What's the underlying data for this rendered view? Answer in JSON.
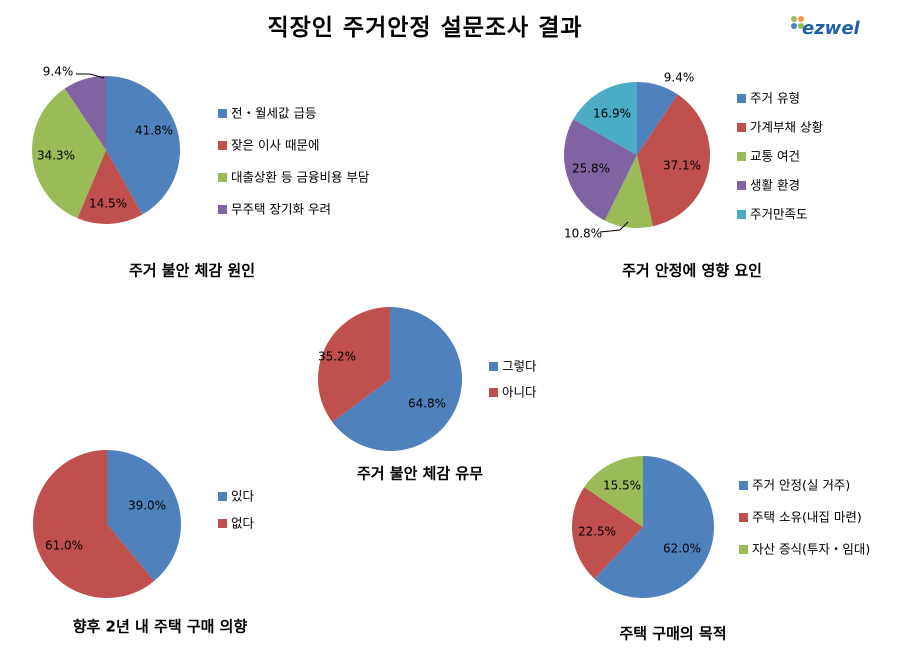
{
  "title": "직장인 주거안정 설문조사 결과",
  "logo": {
    "text": "ezwel"
  },
  "chart_data": [
    {
      "type": "pie",
      "title": "주거 불안 체감 원인",
      "categories": [
        "전・월세값 급등",
        "잦은 이사 때문에",
        "대출상환 등 금융비용 부담",
        "무주택 장기화 우려"
      ],
      "values": [
        41.8,
        14.5,
        34.3,
        9.4
      ],
      "labels": [
        "41.8%",
        "14.5%",
        "34.3%",
        "9.4%"
      ],
      "colors": [
        "#4f81bd",
        "#c0504d",
        "#9bbb59",
        "#8064a2"
      ],
      "legend": "right"
    },
    {
      "type": "pie",
      "title": "주거 안정에 영향 요인",
      "categories": [
        "주거 유형",
        "가계부채 상황",
        "교통 여건",
        "생활 환경",
        "주거만족도"
      ],
      "values": [
        9.4,
        37.1,
        10.8,
        25.8,
        16.9
      ],
      "labels": [
        "9.4%",
        "37.1%",
        "10.8%",
        "25.8%",
        "16.9%"
      ],
      "colors": [
        "#4f81bd",
        "#c0504d",
        "#9bbb59",
        "#8064a2",
        "#4bacc6"
      ],
      "legend": "right"
    },
    {
      "type": "pie",
      "title": "주거 불안 체감 유무",
      "categories": [
        "그렇다",
        "아니다"
      ],
      "values": [
        64.8,
        35.2
      ],
      "labels": [
        "64.8%",
        "35.2%"
      ],
      "colors": [
        "#4f81bd",
        "#c0504d"
      ],
      "legend": "right"
    },
    {
      "type": "pie",
      "title": "향후 2년 내 주택 구매 의향",
      "categories": [
        "있다",
        "없다"
      ],
      "values": [
        39.0,
        61.0
      ],
      "labels": [
        "39.0%",
        "61.0%"
      ],
      "colors": [
        "#4f81bd",
        "#c0504d"
      ],
      "legend": "right"
    },
    {
      "type": "pie",
      "title": "주택 구매의 목적",
      "categories": [
        "주거 안정(실 거주)",
        "주택 소유(내집 마련)",
        "자산 증식(투자・임대)"
      ],
      "values": [
        62.0,
        22.5,
        15.5
      ],
      "labels": [
        "62.0%",
        "22.5%",
        "15.5%"
      ],
      "colors": [
        "#4f81bd",
        "#c0504d",
        "#9bbb59"
      ],
      "legend": "right"
    }
  ]
}
